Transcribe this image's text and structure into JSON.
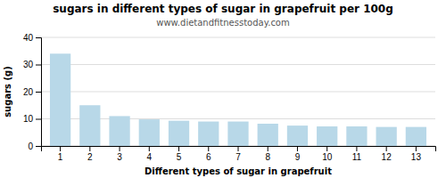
{
  "chart_data": {
    "type": "bar",
    "title": "sugars in different types of sugar in grapefruit per 100g",
    "subtitle": "www.dietandfitnesstoday.com",
    "x_label": "Different types of sugar in grapefruit",
    "y_label": "sugars (g)",
    "categories": [
      1,
      2,
      3,
      4,
      5,
      6,
      7,
      8,
      9,
      10,
      11,
      12,
      13
    ],
    "values": [
      34,
      15,
      11,
      9.8,
      9.3,
      9.0,
      9.0,
      8.2,
      7.5,
      7.2,
      7.2,
      7.0,
      7.0
    ],
    "color": "#b8d8e8",
    "ylim": [
      0,
      40
    ],
    "yticks": [
      0,
      10,
      20,
      30,
      40
    ],
    "grid": true
  }
}
